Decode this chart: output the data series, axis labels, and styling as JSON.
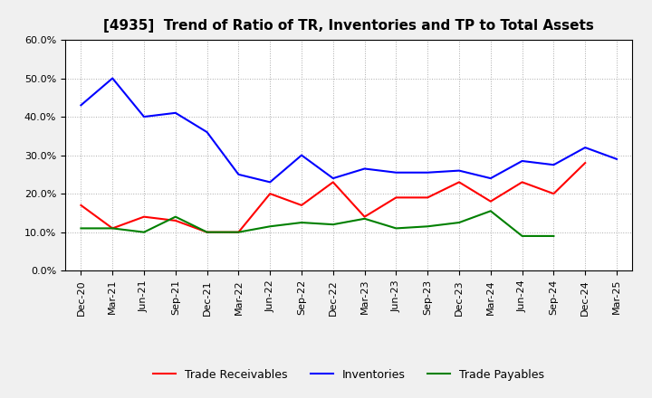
{
  "title": "[4935]  Trend of Ratio of TR, Inventories and TP to Total Assets",
  "x_labels": [
    "Dec-20",
    "Mar-21",
    "Jun-21",
    "Sep-21",
    "Dec-21",
    "Mar-22",
    "Jun-22",
    "Sep-22",
    "Dec-22",
    "Mar-23",
    "Jun-23",
    "Sep-23",
    "Dec-23",
    "Mar-24",
    "Jun-24",
    "Sep-24",
    "Dec-24",
    "Mar-25"
  ],
  "trade_receivables": [
    0.17,
    0.11,
    0.14,
    0.13,
    0.1,
    0.1,
    0.2,
    0.17,
    0.23,
    0.14,
    0.19,
    0.19,
    0.23,
    0.18,
    0.23,
    0.2,
    0.28,
    null
  ],
  "inventories": [
    0.43,
    0.5,
    0.4,
    0.41,
    0.36,
    0.25,
    0.23,
    0.3,
    0.24,
    0.265,
    0.255,
    0.255,
    0.26,
    0.24,
    0.285,
    0.275,
    0.32,
    0.29
  ],
  "trade_payables": [
    0.11,
    0.11,
    0.1,
    0.14,
    0.1,
    0.1,
    0.115,
    0.125,
    0.12,
    0.135,
    0.11,
    0.115,
    0.125,
    0.155,
    0.09,
    0.09,
    null,
    null
  ],
  "ylim": [
    0.0,
    0.6
  ],
  "yticks": [
    0.0,
    0.1,
    0.2,
    0.3,
    0.4,
    0.5,
    0.6
  ],
  "line_colors": {
    "trade_receivables": "#ff0000",
    "inventories": "#0000ff",
    "trade_payables": "#008000"
  },
  "legend_labels": [
    "Trade Receivables",
    "Inventories",
    "Trade Payables"
  ],
  "figure_bg": "#f0f0f0",
  "plot_bg": "#ffffff",
  "grid_color": "#aaaaaa"
}
